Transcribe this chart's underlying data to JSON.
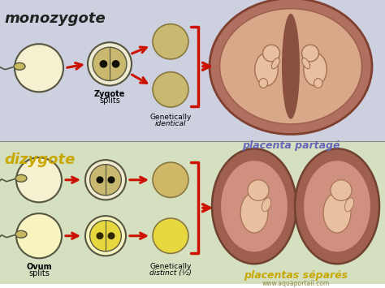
{
  "top_bg": "#cdd0df",
  "bottom_bg": "#d4e0c0",
  "top_label": "monozygote",
  "bottom_label": "dizygote",
  "top_label_color": "#222222",
  "bottom_label_color": "#c8a800",
  "top_sublabel1": "Zygote",
  "top_sublabel2": "splits",
  "top_genetically": "Genetically",
  "top_identical": "identical",
  "bottom_ovum1": "Ovum",
  "bottom_ovum2": "splits",
  "bottom_genetically": "Genetically",
  "bottom_distinct": "distinct (½)",
  "top_right_label": "placenta partagé",
  "bottom_right_label": "placentas séparés",
  "right_label_color": "#6666bb",
  "bottom_right_label_color": "#c8a800",
  "watermark": "www.aquaportail.com",
  "arrow_color": "#cc1100",
  "egg_outer_color": "#f5f0d0",
  "egg_inner_color_mono": "#c8b870",
  "egg_inner_color_diz_top": "#d8c870",
  "egg_inner_color_diz_bot": "#e8d840",
  "sperm_head_color": "#c8b860",
  "nucleus_color": "#202010",
  "uterus_outer": "#b87060",
  "uterus_inner": "#d8a888",
  "fetus_skin": "#e8c0a8",
  "placenta_sep_color": "#904040",
  "placenta_outer_sep": "#9b5a48",
  "placenta_inner_sep": "#c08070"
}
